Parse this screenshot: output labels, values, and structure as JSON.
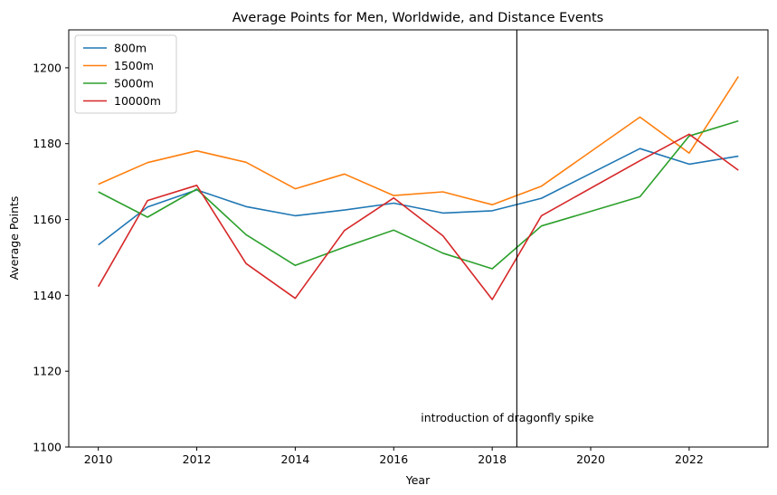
{
  "chart_data": {
    "type": "line",
    "title": "Average Points for Men, Worldwide, and Distance Events",
    "xlabel": "Year",
    "ylabel": "Average Points",
    "xlim": [
      2009.4,
      2023.6
    ],
    "ylim": [
      1100,
      1210
    ],
    "xticks": [
      2010,
      2012,
      2014,
      2016,
      2018,
      2020,
      2022
    ],
    "yticks": [
      1100,
      1120,
      1140,
      1160,
      1180,
      1200
    ],
    "grid": false,
    "legend": "top-left",
    "series": [
      {
        "name": "800m",
        "color": "#1f77b4",
        "x": [
          2010,
          2011,
          2012,
          2013,
          2014,
          2015,
          2016,
          2017,
          2018,
          2019,
          2021,
          2022,
          2023
        ],
        "y": [
          1153.3,
          1163.3,
          1167.8,
          1163.4,
          1161.0,
          1162.5,
          1164.3,
          1161.7,
          1162.3,
          1165.6,
          1178.7,
          1174.6,
          1176.7
        ]
      },
      {
        "name": "1500m",
        "color": "#ff7f0e",
        "x": [
          2010,
          2011,
          2012,
          2013,
          2014,
          2015,
          2016,
          2017,
          2018,
          2019,
          2021,
          2022,
          2023
        ],
        "y": [
          1169.3,
          1175.0,
          1178.1,
          1175.1,
          1168.1,
          1172.0,
          1166.3,
          1167.3,
          1163.9,
          1168.8,
          1187.0,
          1177.5,
          1197.7
        ]
      },
      {
        "name": "5000m",
        "color": "#2ca02c",
        "x": [
          2010,
          2011,
          2012,
          2013,
          2014,
          2015,
          2016,
          2017,
          2018,
          2019,
          2021,
          2022,
          2023
        ],
        "y": [
          1167.3,
          1160.6,
          1168.0,
          1156.0,
          1147.9,
          1152.7,
          1157.2,
          1151.1,
          1147.0,
          1158.3,
          1166.0,
          1182.0,
          1186.0
        ]
      },
      {
        "name": "10000m",
        "color": "#d62728",
        "x": [
          2010,
          2011,
          2012,
          2013,
          2014,
          2015,
          2016,
          2017,
          2018,
          2019,
          2021,
          2022,
          2023
        ],
        "y": [
          1142.3,
          1165.0,
          1169.0,
          1148.4,
          1139.2,
          1157.1,
          1165.7,
          1155.7,
          1138.9,
          1161.0,
          1175.5,
          1182.5,
          1173.0
        ]
      }
    ],
    "vline": {
      "x": 2018.5,
      "color": "#000000"
    },
    "annotation": {
      "text": "introduction of dragonfly spike",
      "x": 2016.55,
      "y": 1107.8
    }
  }
}
